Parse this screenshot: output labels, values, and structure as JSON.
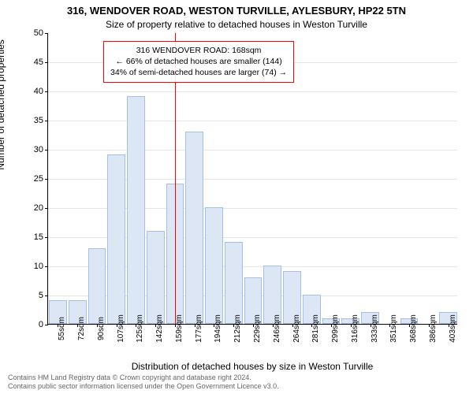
{
  "chart": {
    "type": "histogram",
    "title_main": "316, WENDOVER ROAD, WESTON TURVILLE, AYLESBURY, HP22 5TN",
    "title_sub": "Size of property relative to detached houses in Weston Turville",
    "ylabel": "Number of detached properties",
    "xlabel": "Distribution of detached houses by size in Weston Turville",
    "title_fontsize": 13,
    "subtitle_fontsize": 12,
    "label_fontsize": 12,
    "tick_fontsize": 11,
    "xtick_fontsize": 10,
    "background_color": "#ffffff",
    "grid_color": "#e6e6e6",
    "axis_color": "#000000",
    "bar_fill": "#dce6f5",
    "bar_border": "#a6bfe8",
    "refline_color": "#ff0000",
    "annotation_border": "#ff0000",
    "ylim": [
      0,
      50
    ],
    "ytick_step": 5,
    "xtick_labels": [
      "55sqm",
      "72sqm",
      "90sqm",
      "107sqm",
      "125sqm",
      "142sqm",
      "159sqm",
      "177sqm",
      "194sqm",
      "212sqm",
      "229sqm",
      "246sqm",
      "264sqm",
      "281sqm",
      "299sqm",
      "316sqm",
      "333sqm",
      "351sqm",
      "368sqm",
      "386sqm",
      "403sqm"
    ],
    "values": [
      4,
      4,
      13,
      29,
      39,
      16,
      24,
      33,
      20,
      14,
      8,
      10,
      9,
      5,
      1,
      1,
      2,
      0,
      1,
      0,
      2
    ],
    "ref_x_index": 6.5,
    "annotation": {
      "line1": "316 WENDOVER ROAD: 168sqm",
      "line2": "← 66% of detached houses are smaller (144)",
      "line3": "34% of semi-detached houses are larger (74) →"
    },
    "footer": {
      "line1": "Contains HM Land Registry data © Crown copyright and database right 2024.",
      "line2": "Contains public sector information licensed under the Open Government Licence v3.0."
    }
  }
}
